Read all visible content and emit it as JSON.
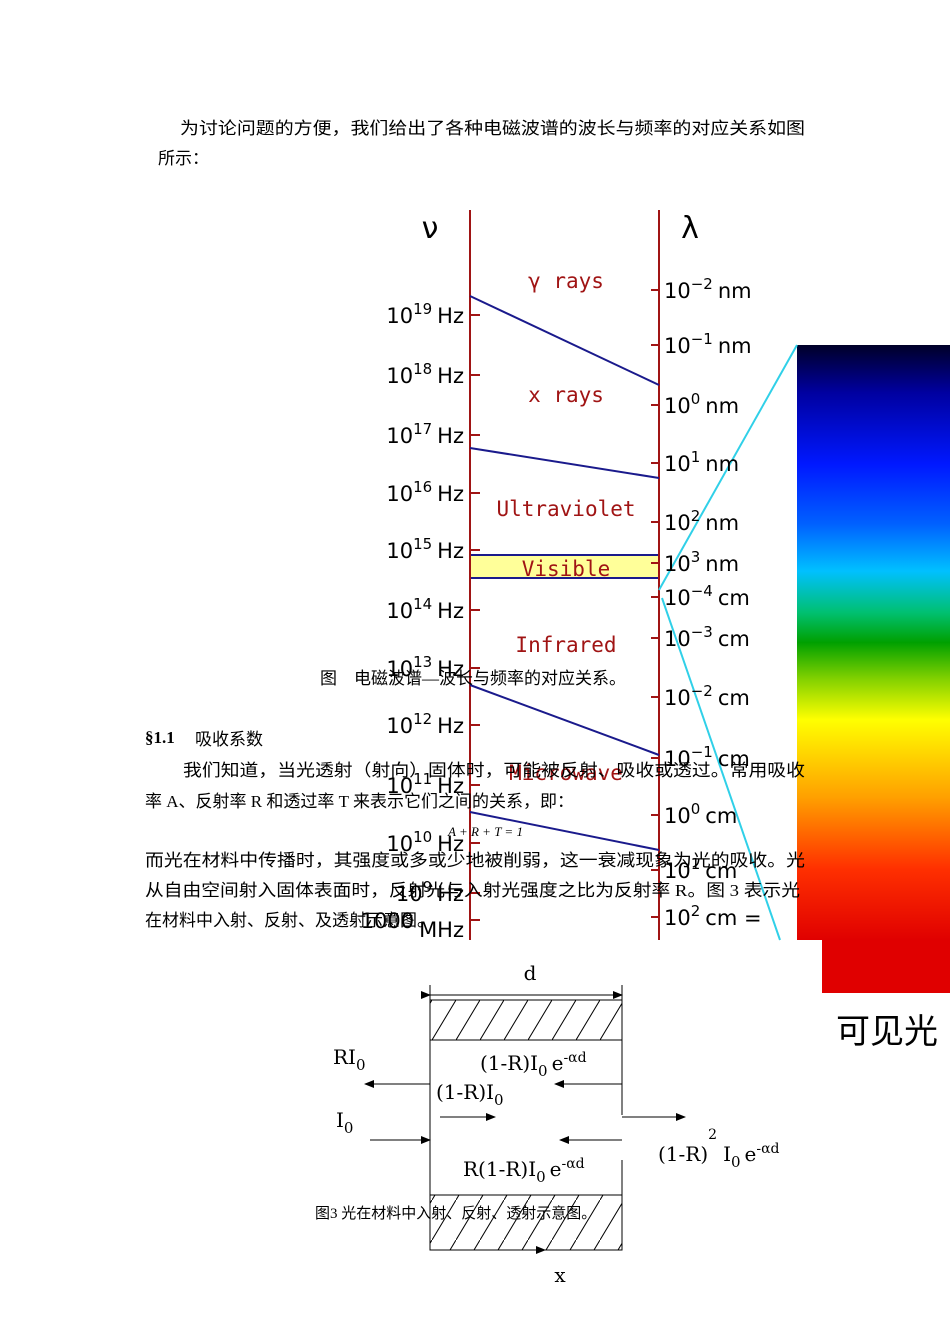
{
  "paragraphs": [
    {
      "lines": [
        "为讨论问题的方便，我们给出了各种电磁波谱的波长与频率的对应关系如图",
        "所示："
      ]
    },
    {
      "lines": [
        "我们知道，当光透射（射向）固体时，可能被反射、吸收或透过。常用吸收",
        "率 A、反射率 R 和透过率 T 来表示它们之间的关系，即："
      ]
    },
    {
      "lines": [
        "而光在材料中传播时，其强度或多或少地被削弱，这一衰减现象为光的吸收。光",
        "从自由空间射入固体表面时，反射光与入射光强度之比为反射率 R。图 3 表示光",
        "在材料中入射、反射、及透射示意图。"
      ]
    }
  ],
  "equation": "A + R + T = 1",
  "section": {
    "number": "§1.1",
    "title": "吸收系数"
  },
  "spectrum_figure": {
    "freq_symbol": "ν",
    "wavelength_symbol": "λ",
    "freq_labels": [
      {
        "base": "10",
        "exp": "19",
        "unit": "Hz"
      },
      {
        "base": "10",
        "exp": "18",
        "unit": "Hz"
      },
      {
        "base": "10",
        "exp": "17",
        "unit": "Hz"
      },
      {
        "base": "10",
        "exp": "16",
        "unit": "Hz"
      },
      {
        "base": "10",
        "exp": "15",
        "unit": "Hz"
      },
      {
        "base": "10",
        "exp": "14",
        "unit": "Hz"
      },
      {
        "base": "10",
        "exp": "13",
        "unit": "Hz"
      },
      {
        "base": "10",
        "exp": "12",
        "unit": "Hz"
      },
      {
        "base": "10",
        "exp": "11",
        "unit": "Hz"
      },
      {
        "base": "10",
        "exp": "10",
        "unit": "Hz"
      },
      {
        "base": "10",
        "exp": "9",
        "unit": "Hz"
      },
      {
        "base": "1000",
        "exp": "",
        "unit": "MHz"
      }
    ],
    "wavelength_labels": [
      {
        "base": "10",
        "exp": "−2",
        "unit": "nm"
      },
      {
        "base": "10",
        "exp": "−1",
        "unit": "nm"
      },
      {
        "base": "10",
        "exp": "0",
        "unit": "nm"
      },
      {
        "base": "10",
        "exp": "1",
        "unit": "nm"
      },
      {
        "base": "10",
        "exp": "2",
        "unit": "nm"
      },
      {
        "base": "10",
        "exp": "3",
        "unit": "nm"
      },
      {
        "base": "10",
        "exp": "−4",
        "unit": "cm"
      },
      {
        "base": "10",
        "exp": "−3",
        "unit": "cm"
      },
      {
        "base": "10",
        "exp": "−2",
        "unit": "cm"
      },
      {
        "base": "10",
        "exp": "−1",
        "unit": "cm"
      },
      {
        "base": "10",
        "exp": "0",
        "unit": "cm"
      },
      {
        "base": "10",
        "exp": "1",
        "unit": "cm"
      },
      {
        "base": "10",
        "exp": "2",
        "unit": "cm ="
      }
    ],
    "bands": [
      "γ rays",
      "x rays",
      "Ultraviolet",
      "Visible",
      "Infrared",
      "Microwave"
    ],
    "caption": "图    电磁波谱—波长与频率的对应关系。",
    "visible_label": "可见光"
  },
  "figure3": {
    "d": "d",
    "x": "x",
    "reflected": [
      "RI",
      "0"
    ],
    "incident": [
      "I",
      "0"
    ],
    "inside_forward": [
      "(1-R)I",
      "0"
    ],
    "inside_back": [
      "(1-R)I",
      "0",
      "e",
      "-αd"
    ],
    "inside_back2": [
      "R(1-R)I",
      "0",
      "e",
      "-αd"
    ],
    "transmitted": [
      "(1-R)",
      "2",
      "I",
      "0",
      "e",
      "-αd"
    ],
    "caption": "图3  光在材料中入射、反射、透射示意图。"
  }
}
